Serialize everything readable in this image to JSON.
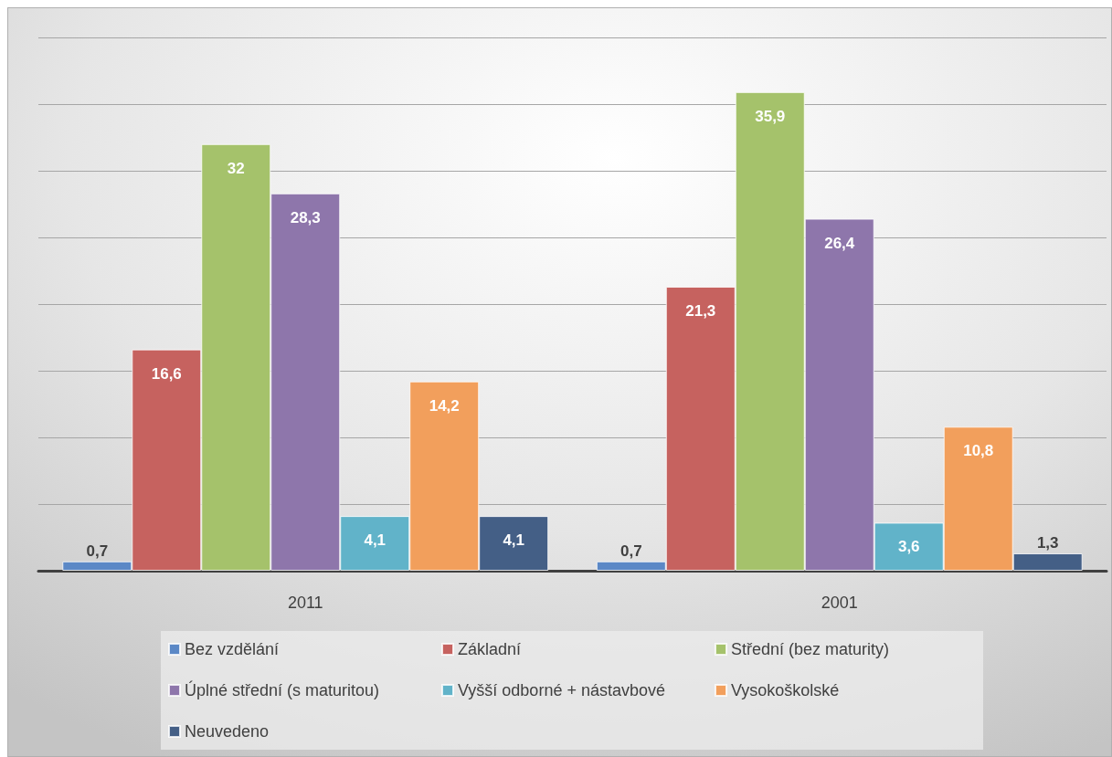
{
  "chart_data": {
    "type": "bar",
    "categories": [
      "2011",
      "2001"
    ],
    "series": [
      {
        "name": "Bez vzdělání",
        "color": "#5b88c6",
        "values": [
          0.7,
          0.7
        ],
        "value_labels": [
          "0,7",
          "0,7"
        ]
      },
      {
        "name": "Základní",
        "color": "#c6625f",
        "values": [
          16.6,
          21.3
        ],
        "value_labels": [
          "16,6",
          "21,3"
        ]
      },
      {
        "name": "Střední (bez maturity)",
        "color": "#a5c26b",
        "values": [
          32,
          35.9
        ],
        "value_labels": [
          "32",
          "35,9"
        ]
      },
      {
        "name": "Úplné střední (s maturitou)",
        "color": "#8e76ab",
        "values": [
          28.3,
          26.4
        ],
        "value_labels": [
          "28,3",
          "26,4"
        ]
      },
      {
        "name": "Vyšší odborné + nástavbové",
        "color": "#61b3c9",
        "values": [
          4.1,
          3.6
        ],
        "value_labels": [
          "4,1",
          "3,6"
        ]
      },
      {
        "name": "Vysokoškolské",
        "color": "#f29f5c",
        "values": [
          14.2,
          10.8
        ],
        "value_labels": [
          "14,2",
          "10,8"
        ]
      },
      {
        "name": "Neuvedeno",
        "color": "#445f86",
        "values": [
          4.1,
          1.3
        ],
        "value_labels": [
          "4,1",
          "1,3"
        ]
      }
    ],
    "ylim": [
      0,
      40
    ],
    "yticks": [
      {
        "value": 0,
        "label": null
      },
      {
        "value": 5,
        "label": null
      },
      {
        "value": 10,
        "label": null
      },
      {
        "value": 15,
        "label": null
      },
      {
        "value": 20,
        "label": null
      },
      {
        "value": 25,
        "label": null
      },
      {
        "value": 30,
        "label": null
      },
      {
        "value": 35,
        "label": null
      },
      {
        "value": 40,
        "label": null
      }
    ],
    "tick_labels": "x",
    "grid": "y",
    "legend": "bottom"
  }
}
